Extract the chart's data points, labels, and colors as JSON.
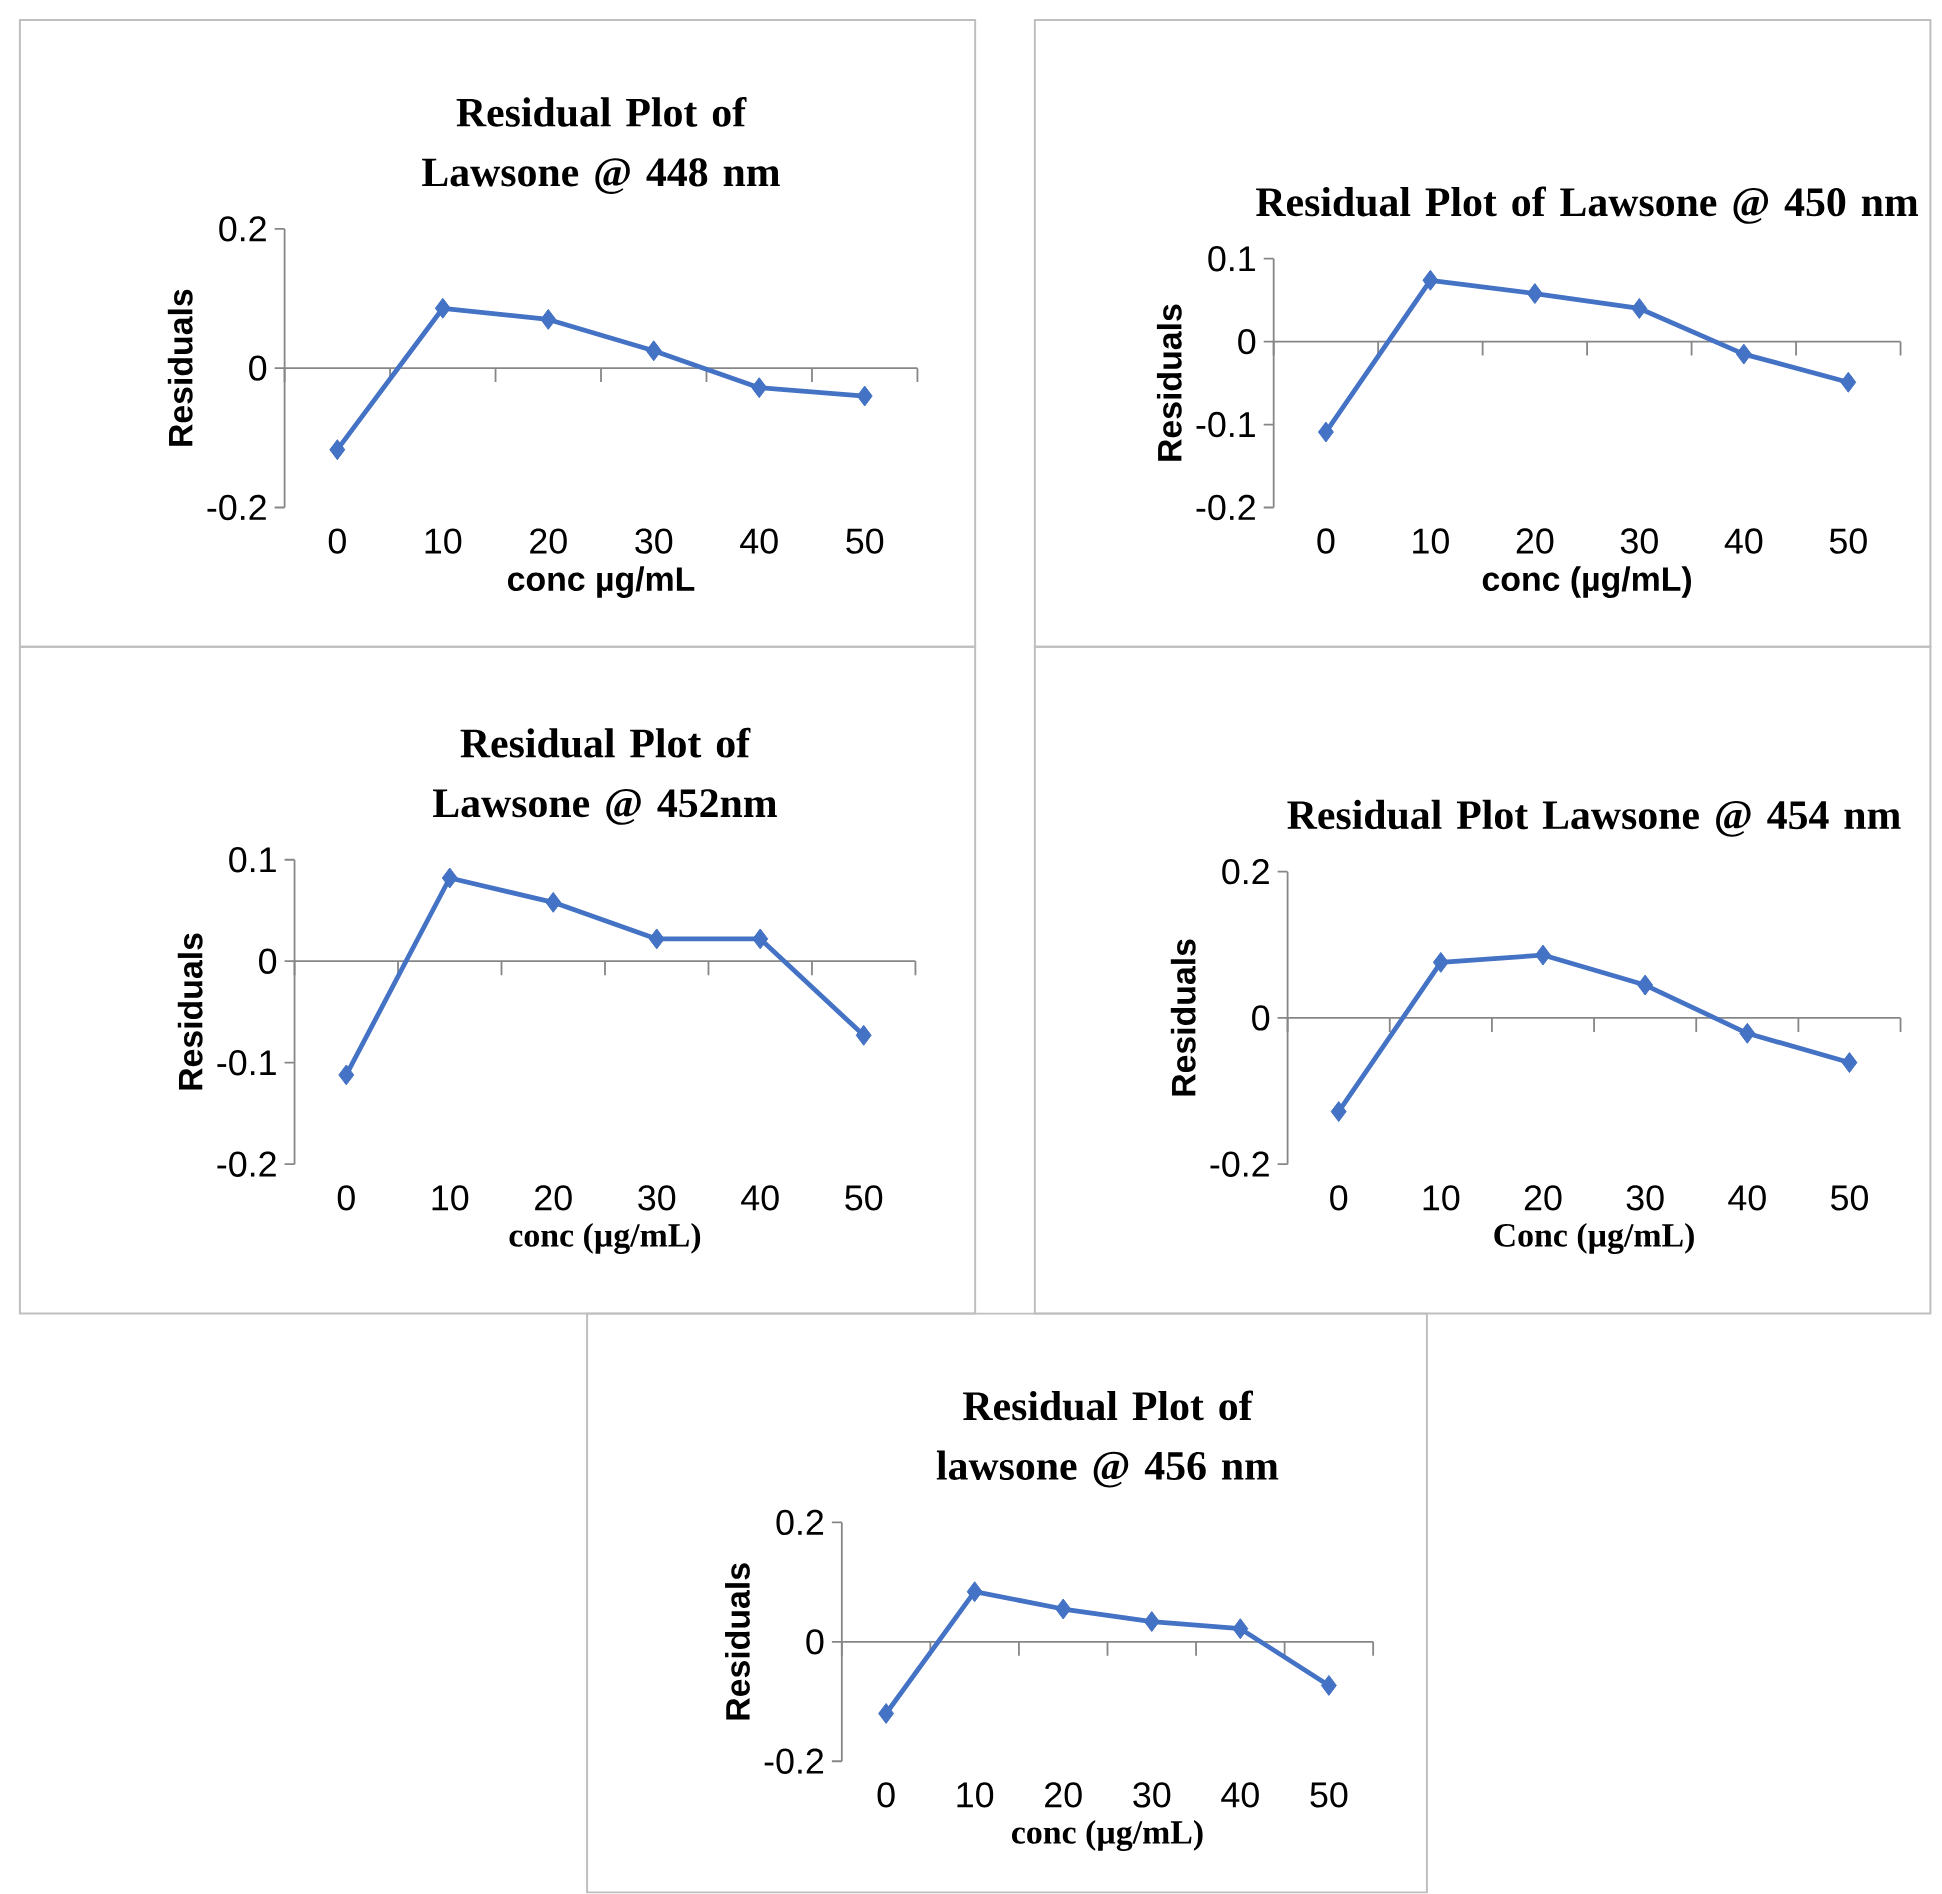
{
  "chart_data": [
    {
      "type": "line",
      "title": "Residual Plot of Lawsone @ 448 nm",
      "xlabel": "conc µg/mL",
      "ylabel": "Residuals",
      "categories": [
        "0",
        "10",
        "20",
        "30",
        "40",
        "50"
      ],
      "marker": "diamond",
      "line_style": "solid",
      "ylim": [
        -0.2,
        0.2
      ],
      "yticks": [
        -0.2,
        0,
        0.2
      ],
      "series": [
        {
          "color": "#4472c4",
          "values": [
            -0.117,
            0.086,
            0.07,
            0.025,
            -0.028,
            -0.04
          ]
        }
      ]
    },
    {
      "type": "line",
      "title": "Residual Plot of Lawsone @ 450 nm",
      "xlabel": "conc (µg/mL)",
      "ylabel": "Residuals",
      "categories": [
        "0",
        "10",
        "20",
        "30",
        "40",
        "50"
      ],
      "marker": "diamond",
      "line_style": "solid",
      "ylim": [
        -0.2,
        0.1
      ],
      "yticks": [
        -0.2,
        -0.1,
        0,
        0.1
      ],
      "series": [
        {
          "color": "#4472c4",
          "values": [
            -0.109,
            0.074,
            0.058,
            0.04,
            -0.015,
            -0.049
          ]
        }
      ]
    },
    {
      "type": "line",
      "title": "Residual Plot of Lawsone @ 452nm",
      "xlabel": "conc (µg/mL)",
      "ylabel": "Residuals",
      "categories": [
        "0",
        "10",
        "20",
        "30",
        "40",
        "50"
      ],
      "marker": "diamond",
      "line_style": "solid",
      "ylim": [
        -0.2,
        0.1
      ],
      "yticks": [
        -0.2,
        -0.1,
        0,
        0.1
      ],
      "series": [
        {
          "color": "#4472c4",
          "values": [
            -0.112,
            0.082,
            0.058,
            0.022,
            0.022,
            -0.073
          ]
        }
      ]
    },
    {
      "type": "line",
      "title": "Residual Plot Lawsone @ 454 nm",
      "xlabel": "Conc (µg/mL)",
      "ylabel": "Residuals",
      "categories": [
        "0",
        "10",
        "20",
        "30",
        "40",
        "50"
      ],
      "marker": "diamond",
      "line_style": "solid",
      "ylim": [
        -0.2,
        0.2
      ],
      "yticks": [
        -0.2,
        0,
        0.2
      ],
      "series": [
        {
          "color": "#4472c4",
          "values": [
            -0.128,
            0.076,
            0.086,
            0.045,
            -0.021,
            -0.061
          ]
        }
      ]
    },
    {
      "type": "line",
      "title": "Residual Plot of lawsone @ 456 nm",
      "xlabel": "conc (µg/mL)",
      "ylabel": "Residuals",
      "categories": [
        "0",
        "10",
        "20",
        "30",
        "40",
        "50"
      ],
      "marker": "diamond",
      "line_style": "solid",
      "ylim": [
        -0.2,
        0.2
      ],
      "yticks": [
        -0.2,
        0,
        0.2
      ],
      "series": [
        {
          "color": "#4472c4",
          "values": [
            -0.12,
            0.084,
            0.055,
            0.034,
            0.022,
            -0.073
          ]
        }
      ]
    }
  ]
}
